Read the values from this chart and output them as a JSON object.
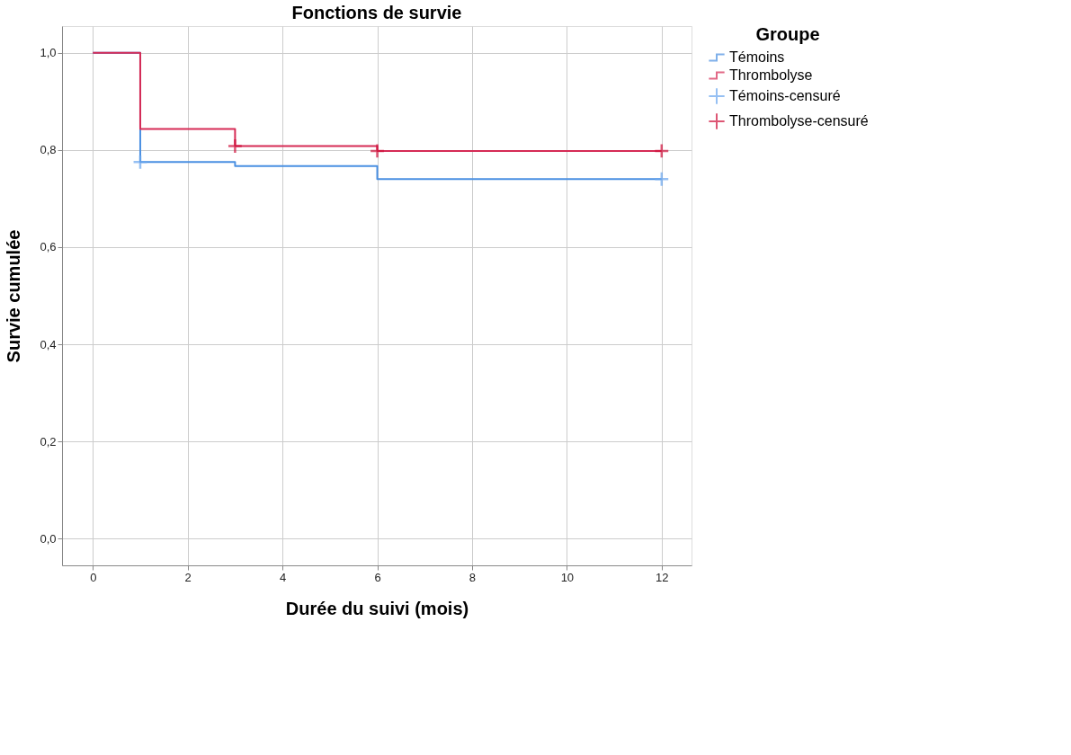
{
  "chart_data": {
    "type": "step",
    "title": "Fonctions de survie",
    "xlabel": "Durée du suivi (mois)",
    "ylabel": "Survie cumulée",
    "legend_title": "Groupe",
    "series": [
      {
        "name": "Témoins",
        "color": "#4a90e2",
        "x": [
          0,
          1,
          3,
          6,
          12
        ],
        "values": [
          1.0,
          0.775,
          0.767,
          0.74,
          0.74
        ]
      },
      {
        "name": "Thrombolyse",
        "color": "#d62b55",
        "x": [
          0,
          1,
          3,
          6,
          12
        ],
        "values": [
          1.0,
          0.843,
          0.808,
          0.798,
          0.798
        ]
      },
      {
        "name": "Témoins-censuré",
        "type": "scatter",
        "marker": "cross",
        "color": "#6aa6ee",
        "x": [
          1,
          12
        ],
        "values": [
          0.775,
          0.74
        ]
      },
      {
        "name": "Thrombolyse-censuré",
        "type": "scatter",
        "marker": "cross",
        "color": "#d0103a",
        "x": [
          3,
          6,
          12
        ],
        "values": [
          0.808,
          0.798,
          0.798
        ]
      }
    ],
    "xlim": [
      -0.65,
      12.63
    ],
    "xticks": [
      0,
      2,
      4,
      6,
      8,
      10,
      12
    ],
    "ylim": [
      -0.055,
      1.055
    ],
    "yticks": [
      {
        "value": 0,
        "label": "0,0"
      },
      {
        "value": 0.2,
        "label": "0,2"
      },
      {
        "value": 0.4,
        "label": "0,4"
      },
      {
        "value": 0.6,
        "label": "0,6"
      },
      {
        "value": 0.8,
        "label": "0,8"
      },
      {
        "value": 1.0,
        "label": "1,0"
      }
    ],
    "grid": true,
    "legend": "top right"
  }
}
